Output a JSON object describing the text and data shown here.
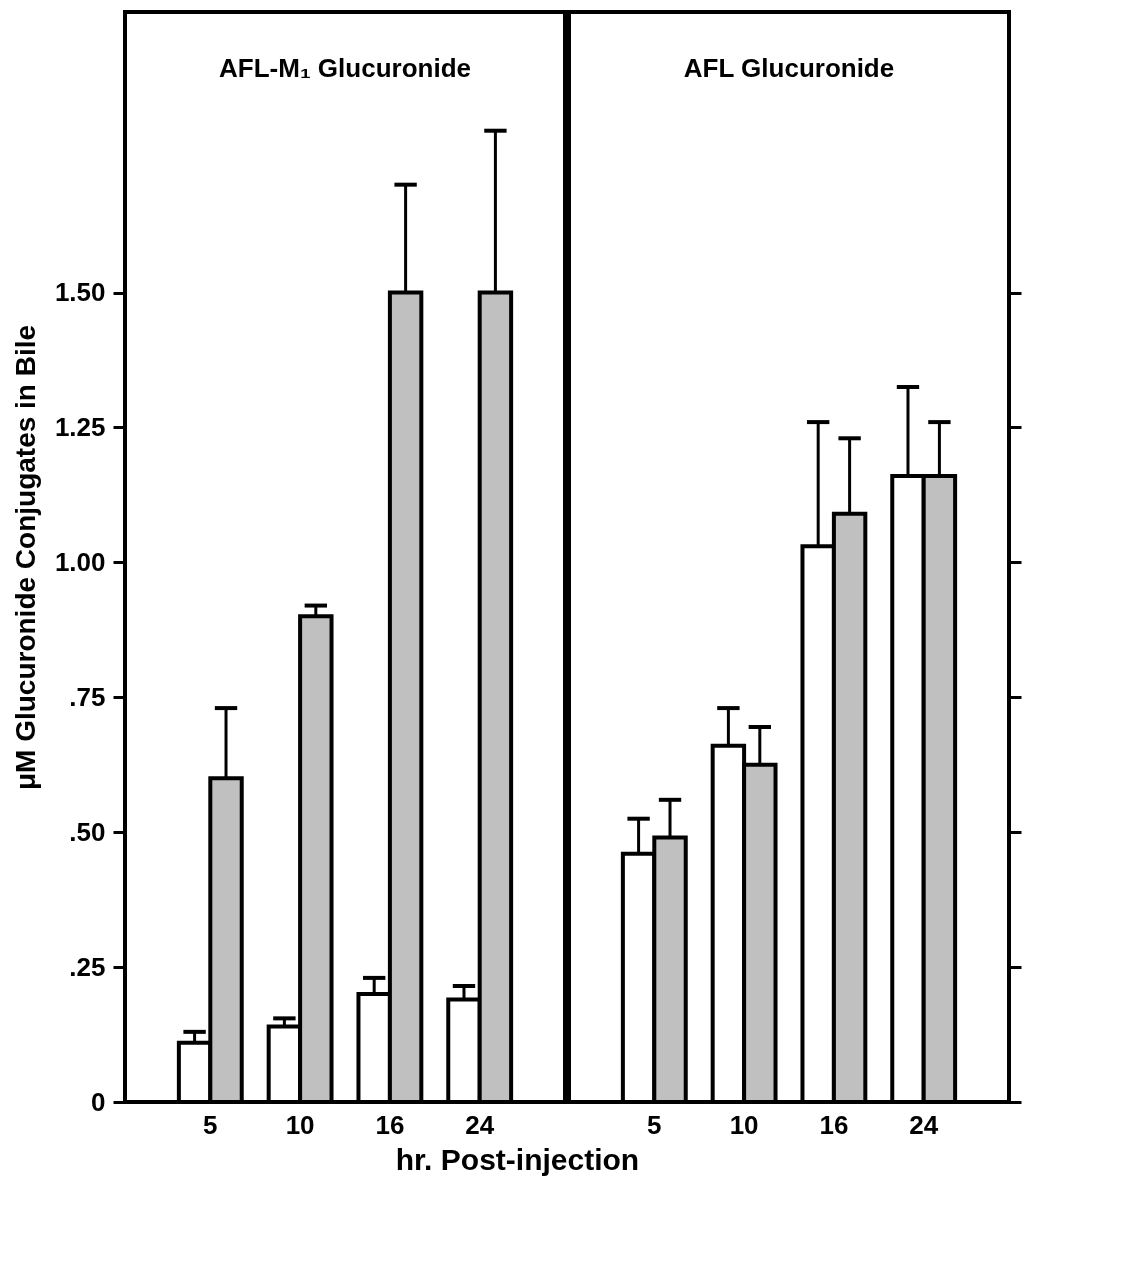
{
  "chart_data": [
    {
      "type": "bar",
      "title": "AFL-M₁ Glucuronide",
      "xlabel": "hr. Post-injection",
      "ylabel": "μM Glucuronide Conjugates in Bile",
      "categories": [
        "5",
        "10",
        "16",
        "24"
      ],
      "ylim": [
        0,
        2.02
      ],
      "yticks": [
        0,
        {
          "value": 0.25,
          "label": ".25"
        },
        {
          "value": 0.5,
          "label": ".50"
        },
        {
          "value": 0.75,
          "label": ".75"
        },
        {
          "value": 1.0,
          "label": "1.00"
        },
        {
          "value": 1.25,
          "label": "1.25"
        },
        {
          "value": 1.5,
          "label": "1.50"
        }
      ],
      "grid": false,
      "legend": false,
      "series": [
        {
          "color": "#ffffff",
          "values": [
            0.11,
            0.14,
            0.2,
            0.19
          ],
          "errors": [
            [
              0.11,
              0.13
            ],
            [
              0.14,
              0.155
            ],
            [
              0.2,
              0.23
            ],
            [
              0.19,
              0.215
            ]
          ]
        },
        {
          "color": "#c0c0c0",
          "values": [
            0.6,
            0.9,
            1.5,
            1.5
          ],
          "errors": [
            [
              0.6,
              0.73
            ],
            [
              0.9,
              0.92
            ],
            [
              1.5,
              1.7
            ],
            [
              1.5,
              1.8
            ]
          ]
        }
      ]
    },
    {
      "type": "bar",
      "title": "AFL Glucuronide",
      "categories": [
        "5",
        "10",
        "16",
        "24"
      ],
      "ylim": [
        0,
        2.02
      ],
      "yticks": [
        0,
        0.25,
        0.5,
        0.75,
        1.0,
        1.25,
        1.5
      ],
      "tick_labels": "x",
      "grid": false,
      "legend": false,
      "series": [
        {
          "color": "#ffffff",
          "values": [
            0.46,
            0.66,
            1.03,
            1.16
          ],
          "errors": [
            [
              0.46,
              0.525
            ],
            [
              0.66,
              0.73
            ],
            [
              1.03,
              1.26
            ],
            [
              1.16,
              1.325
            ]
          ]
        },
        {
          "color": "#c0c0c0",
          "values": [
            0.49,
            0.625,
            1.09,
            1.16
          ],
          "errors": [
            [
              0.49,
              0.56
            ],
            [
              0.625,
              0.695
            ],
            [
              1.09,
              1.23
            ],
            [
              1.16,
              1.26
            ]
          ]
        }
      ]
    }
  ]
}
